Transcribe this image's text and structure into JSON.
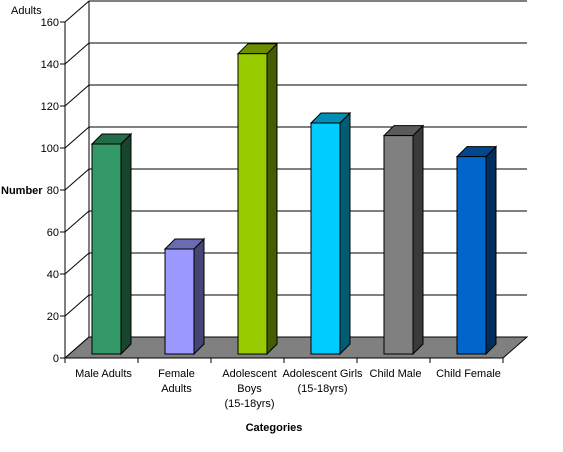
{
  "chart_data": {
    "type": "bar",
    "title": "",
    "unit_label": "Adults",
    "xlabel": "Categories",
    "ylabel": "Number",
    "ylim": [
      0,
      160
    ],
    "yticks": [
      0,
      20,
      40,
      60,
      80,
      100,
      120,
      140,
      160
    ],
    "grid": true,
    "three_d": true,
    "categories": [
      {
        "lines": [
          "Male Adults"
        ],
        "name": "Male Adults"
      },
      {
        "lines": [
          "Female",
          "Adults"
        ],
        "name": "Female Adults"
      },
      {
        "lines": [
          "Adolescent",
          "Boys",
          "(15-18yrs)"
        ],
        "name": "Adolescent Boys (15-18yrs)"
      },
      {
        "lines": [
          "Adolescent Girls",
          "(15-18yrs)"
        ],
        "name": "Adolescent Girls (15-18yrs)"
      },
      {
        "lines": [
          "Child Male"
        ],
        "name": "Child Male"
      },
      {
        "lines": [
          "Child Female"
        ],
        "name": "Child Female"
      }
    ],
    "values": [
      100,
      50,
      143,
      110,
      104,
      94
    ],
    "colors": {
      "bars": [
        "#339966",
        "#9999ff",
        "#99cc00",
        "#00ccff",
        "#808080",
        "#0066cc"
      ],
      "floor": "#808080",
      "grid": "#000000"
    }
  }
}
